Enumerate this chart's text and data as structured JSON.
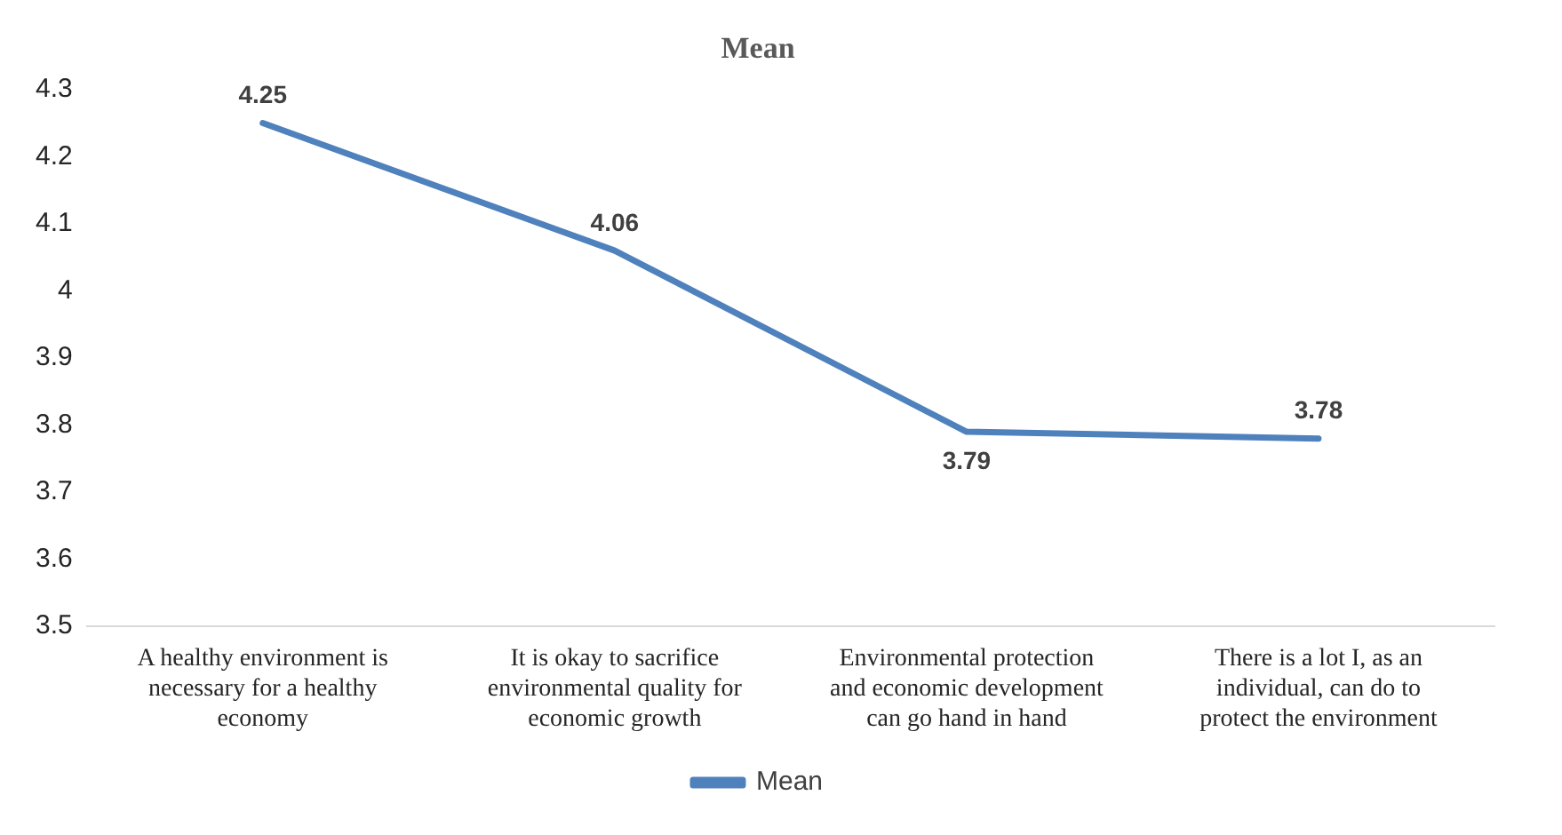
{
  "chart_data": {
    "type": "line",
    "title": "Mean",
    "categories": [
      "A healthy environment is necessary for a healthy economy",
      "It is okay to sacrifice environmental quality for economic growth",
      "Environmental protection and economic development can go hand in hand",
      "There is a lot I, as an individual, can do to protect the environment"
    ],
    "series": [
      {
        "name": "Mean",
        "color": "#4f81bd",
        "values": [
          4.25,
          4.06,
          3.79,
          3.78
        ]
      }
    ],
    "ylim": [
      3.5,
      4.3
    ],
    "yticks": [
      3.5,
      3.6,
      3.7,
      3.8,
      3.9,
      4,
      4.1,
      4.2,
      4.3
    ],
    "grid": false,
    "legend": "bottom",
    "marker": "none",
    "line_style": "solid",
    "data_labels": true
  }
}
